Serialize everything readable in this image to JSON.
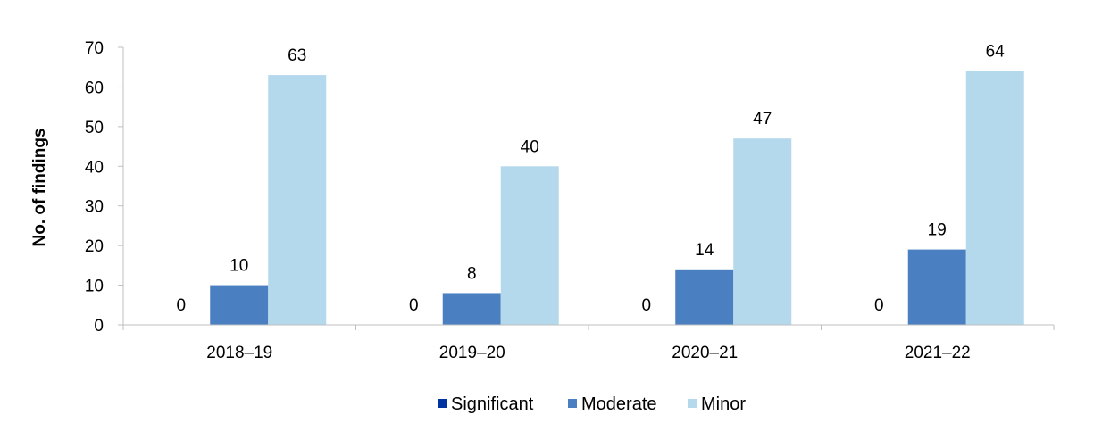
{
  "chart_data": {
    "type": "bar",
    "title": "",
    "xlabel": "",
    "ylabel": "No. of findings",
    "ylim": [
      0,
      70
    ],
    "ytick_step": 10,
    "grid": false,
    "legend_position": "bottom-center",
    "categories": [
      "2018–19",
      "2019–20",
      "2020–21",
      "2021–22"
    ],
    "series": [
      {
        "name": "Significant",
        "color": "#0033a0",
        "values": [
          0,
          0,
          0,
          0
        ]
      },
      {
        "name": "Moderate",
        "color": "#4a7fc1",
        "values": [
          10,
          8,
          14,
          19
        ]
      },
      {
        "name": "Minor",
        "color": "#b5d9ec",
        "values": [
          63,
          40,
          47,
          64
        ]
      }
    ]
  }
}
